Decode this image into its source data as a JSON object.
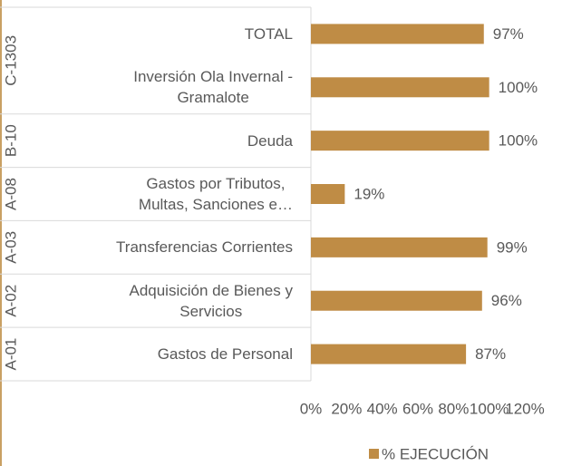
{
  "chart_data": {
    "type": "bar",
    "orientation": "horizontal",
    "categories": [
      "TOTAL",
      "Inversión Ola Invernal -\nGramalote",
      "Deuda",
      "Gastos por Tributos,\nMultas, Sanciones e…",
      "Transferencias Corrientes",
      "Adquisición de Bienes y\nServicios",
      "Gastos de Personal"
    ],
    "groups": [
      {
        "label": "C-1303",
        "span": 2
      },
      {
        "label": "B-10",
        "span": 1
      },
      {
        "label": "A-08",
        "span": 1
      },
      {
        "label": "A-03",
        "span": 1
      },
      {
        "label": "A-02",
        "span": 1
      },
      {
        "label": "A-01",
        "span": 1
      }
    ],
    "series": [
      {
        "name": "% EJECUCIÓN",
        "color": "#bf8c45",
        "values": [
          97,
          100,
          100,
          19,
          99,
          96,
          87
        ],
        "value_labels": [
          "97%",
          "100%",
          "100%",
          "19%",
          "99%",
          "96%",
          "87%"
        ]
      }
    ],
    "xlim": [
      0,
      120
    ],
    "xticks": [
      {
        "value": 0,
        "label": "0%"
      },
      {
        "value": 20,
        "label": "20%"
      },
      {
        "value": 40,
        "label": "40%"
      },
      {
        "value": 60,
        "label": "60%"
      },
      {
        "value": 80,
        "label": "80%"
      },
      {
        "value": 100,
        "label": "100%"
      },
      {
        "value": 120,
        "label": "120%"
      }
    ],
    "legend": "bottom"
  }
}
